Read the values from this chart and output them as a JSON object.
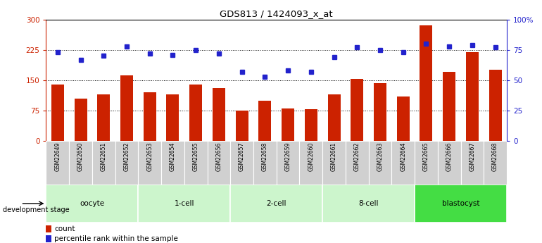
{
  "title": "GDS813 / 1424093_x_at",
  "samples": [
    "GSM22649",
    "GSM22650",
    "GSM22651",
    "GSM22652",
    "GSM22653",
    "GSM22654",
    "GSM22655",
    "GSM22656",
    "GSM22657",
    "GSM22658",
    "GSM22659",
    "GSM22660",
    "GSM22661",
    "GSM22662",
    "GSM22663",
    "GSM22664",
    "GSM22665",
    "GSM22666",
    "GSM22667",
    "GSM22668"
  ],
  "counts": [
    140,
    105,
    115,
    162,
    120,
    115,
    140,
    130,
    75,
    100,
    80,
    78,
    115,
    153,
    143,
    110,
    285,
    170,
    220,
    175
  ],
  "percentiles": [
    73,
    67,
    70,
    78,
    72,
    71,
    75,
    72,
    57,
    53,
    58,
    57,
    69,
    77,
    75,
    73,
    80,
    78,
    79,
    77
  ],
  "groups": [
    {
      "name": "oocyte",
      "start": 0,
      "end": 4,
      "color": "#ccf5cc"
    },
    {
      "name": "1-cell",
      "start": 4,
      "end": 8,
      "color": "#ccf5cc"
    },
    {
      "name": "2-cell",
      "start": 8,
      "end": 12,
      "color": "#ccf5cc"
    },
    {
      "name": "8-cell",
      "start": 12,
      "end": 16,
      "color": "#ccf5cc"
    },
    {
      "name": "blastocyst",
      "start": 16,
      "end": 20,
      "color": "#44dd44"
    }
  ],
  "bar_color": "#cc2200",
  "dot_color": "#2222cc",
  "left_ylim": [
    0,
    300
  ],
  "right_ylim": [
    0,
    100
  ],
  "left_yticks": [
    0,
    75,
    150,
    225,
    300
  ],
  "right_yticks": [
    0,
    25,
    50,
    75,
    100
  ],
  "right_yticklabels": [
    "0",
    "25",
    "50",
    "75",
    "100%"
  ],
  "hlines": [
    75,
    150,
    225
  ],
  "background_color": "#ffffff",
  "plot_bg_color": "#ffffff",
  "sample_bg_color": "#d0d0d0"
}
